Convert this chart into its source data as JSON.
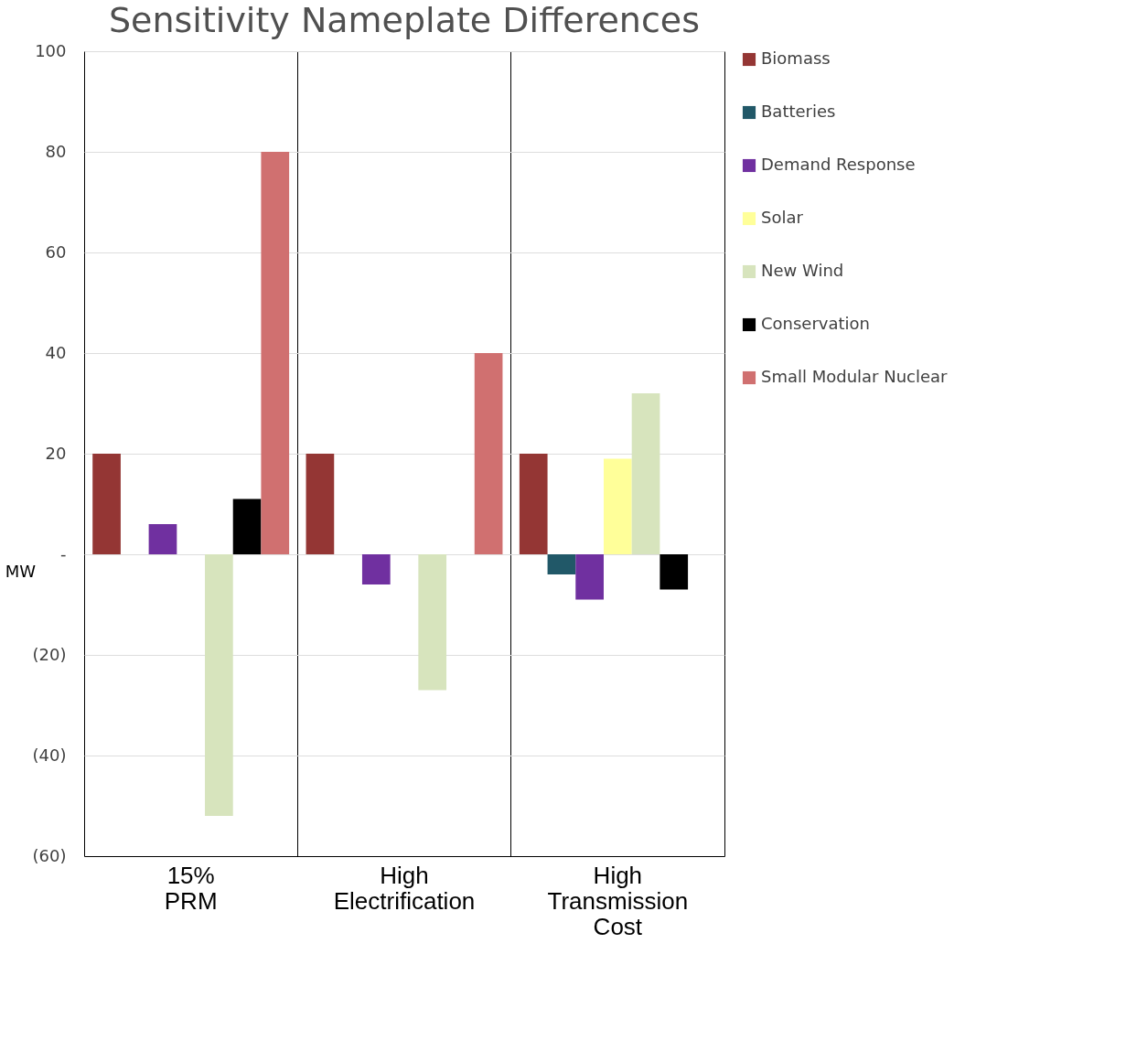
{
  "chart_data": {
    "type": "bar",
    "title": "Sensitivity Nameplate Differences",
    "ylabel": "MW",
    "categories": [
      "15% PRM",
      "High Electrification",
      "High Transmission Cost"
    ],
    "series": [
      {
        "name": "Biomass",
        "color": "#943634",
        "values": [
          20,
          20,
          20
        ]
      },
      {
        "name": "Batteries",
        "color": "#215868",
        "values": [
          null,
          null,
          -4
        ]
      },
      {
        "name": "Demand Response",
        "color": "#7030a0",
        "values": [
          6,
          -6,
          -9
        ]
      },
      {
        "name": "Solar",
        "color": "#ffff99",
        "values": [
          null,
          null,
          19
        ]
      },
      {
        "name": "New Wind",
        "color": "#d7e4bd",
        "values": [
          -52,
          -27,
          32
        ]
      },
      {
        "name": "Conservation",
        "color": "#000000",
        "values": [
          11,
          null,
          -7
        ]
      },
      {
        "name": "Small Modular Nuclear",
        "color": "#d07070",
        "values": [
          80,
          40,
          null
        ]
      }
    ],
    "ylim": [
      -60,
      100
    ],
    "yticks": [
      {
        "value": -60,
        "label": "(60)"
      },
      {
        "value": -40,
        "label": "(40)"
      },
      {
        "value": -20,
        "label": "(20)"
      },
      {
        "value": 0,
        "label": "-"
      },
      20,
      40,
      60,
      80,
      100
    ],
    "grid": "y",
    "legend": "right"
  }
}
